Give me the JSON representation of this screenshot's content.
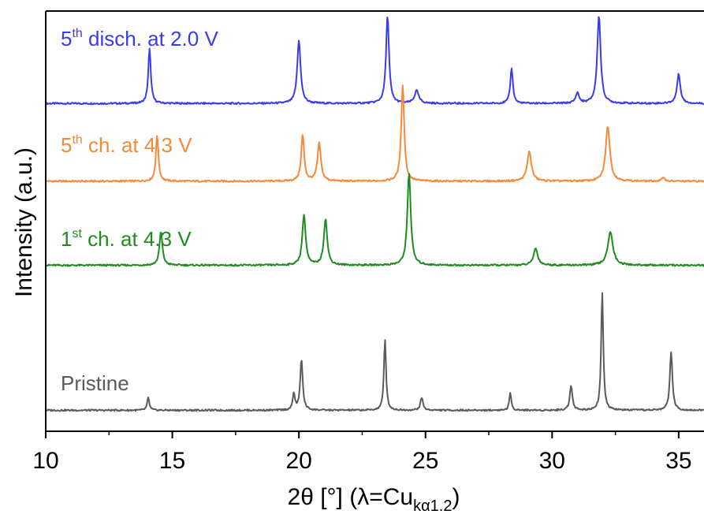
{
  "chart_data": {
    "type": "line",
    "title": "",
    "xlabel": {
      "main": "2θ [°] (λ=Cu",
      "subscript": "kα1.2",
      "close": ")"
    },
    "ylabel": "Intensity (a.u.)",
    "xlim": [
      10,
      36
    ],
    "x_ticks": [
      10,
      15,
      20,
      25,
      30,
      35
    ],
    "x_minor_ticks": [
      12.5,
      17.5,
      22.5,
      27.5,
      32.5
    ],
    "y_ticks_shown": false,
    "grid": false,
    "legend": "inline-labels",
    "series": [
      {
        "label_pre": "5",
        "label_sup": "th",
        "label_post": " disch. at 2.0 V",
        "color": "#3a3af0",
        "baseline": 0.78,
        "peaks": [
          [
            14.1,
            0.13,
            0.06
          ],
          [
            20.0,
            0.15,
            0.08
          ],
          [
            23.5,
            0.21,
            0.07
          ],
          [
            24.65,
            0.03,
            0.1
          ],
          [
            28.4,
            0.085,
            0.06
          ],
          [
            31.0,
            0.025,
            0.08
          ],
          [
            31.85,
            0.21,
            0.08
          ],
          [
            35.0,
            0.07,
            0.08
          ]
        ]
      },
      {
        "label_pre": "5",
        "label_sup": "th",
        "label_post": " ch. at 4.3 V",
        "color": "#f58a3c",
        "baseline": 0.595,
        "peaks": [
          [
            14.4,
            0.11,
            0.06
          ],
          [
            20.15,
            0.11,
            0.07
          ],
          [
            20.8,
            0.09,
            0.08
          ],
          [
            24.1,
            0.23,
            0.07
          ],
          [
            29.1,
            0.07,
            0.1
          ],
          [
            32.2,
            0.13,
            0.1
          ],
          [
            34.4,
            0.01,
            0.06
          ]
        ]
      },
      {
        "label_pre": "1",
        "label_sup": "st",
        "label_post": " ch. at 4.3 V",
        "color": "#1f8c1f",
        "baseline": 0.395,
        "peaks": [
          [
            14.55,
            0.08,
            0.07
          ],
          [
            20.2,
            0.12,
            0.08
          ],
          [
            21.05,
            0.11,
            0.08
          ],
          [
            24.35,
            0.22,
            0.08
          ],
          [
            29.35,
            0.04,
            0.1
          ],
          [
            32.3,
            0.08,
            0.12
          ]
        ]
      },
      {
        "label_pre": "Pristine",
        "label_sup": "",
        "label_post": "",
        "color": "#5a5a5a",
        "baseline": 0.05,
        "peaks": [
          [
            14.05,
            0.03,
            0.05
          ],
          [
            19.8,
            0.04,
            0.05
          ],
          [
            20.1,
            0.12,
            0.06
          ],
          [
            23.4,
            0.17,
            0.05
          ],
          [
            24.85,
            0.03,
            0.06
          ],
          [
            28.35,
            0.04,
            0.05
          ],
          [
            30.75,
            0.06,
            0.06
          ],
          [
            31.98,
            0.28,
            0.05
          ],
          [
            34.7,
            0.14,
            0.06
          ]
        ]
      }
    ]
  }
}
